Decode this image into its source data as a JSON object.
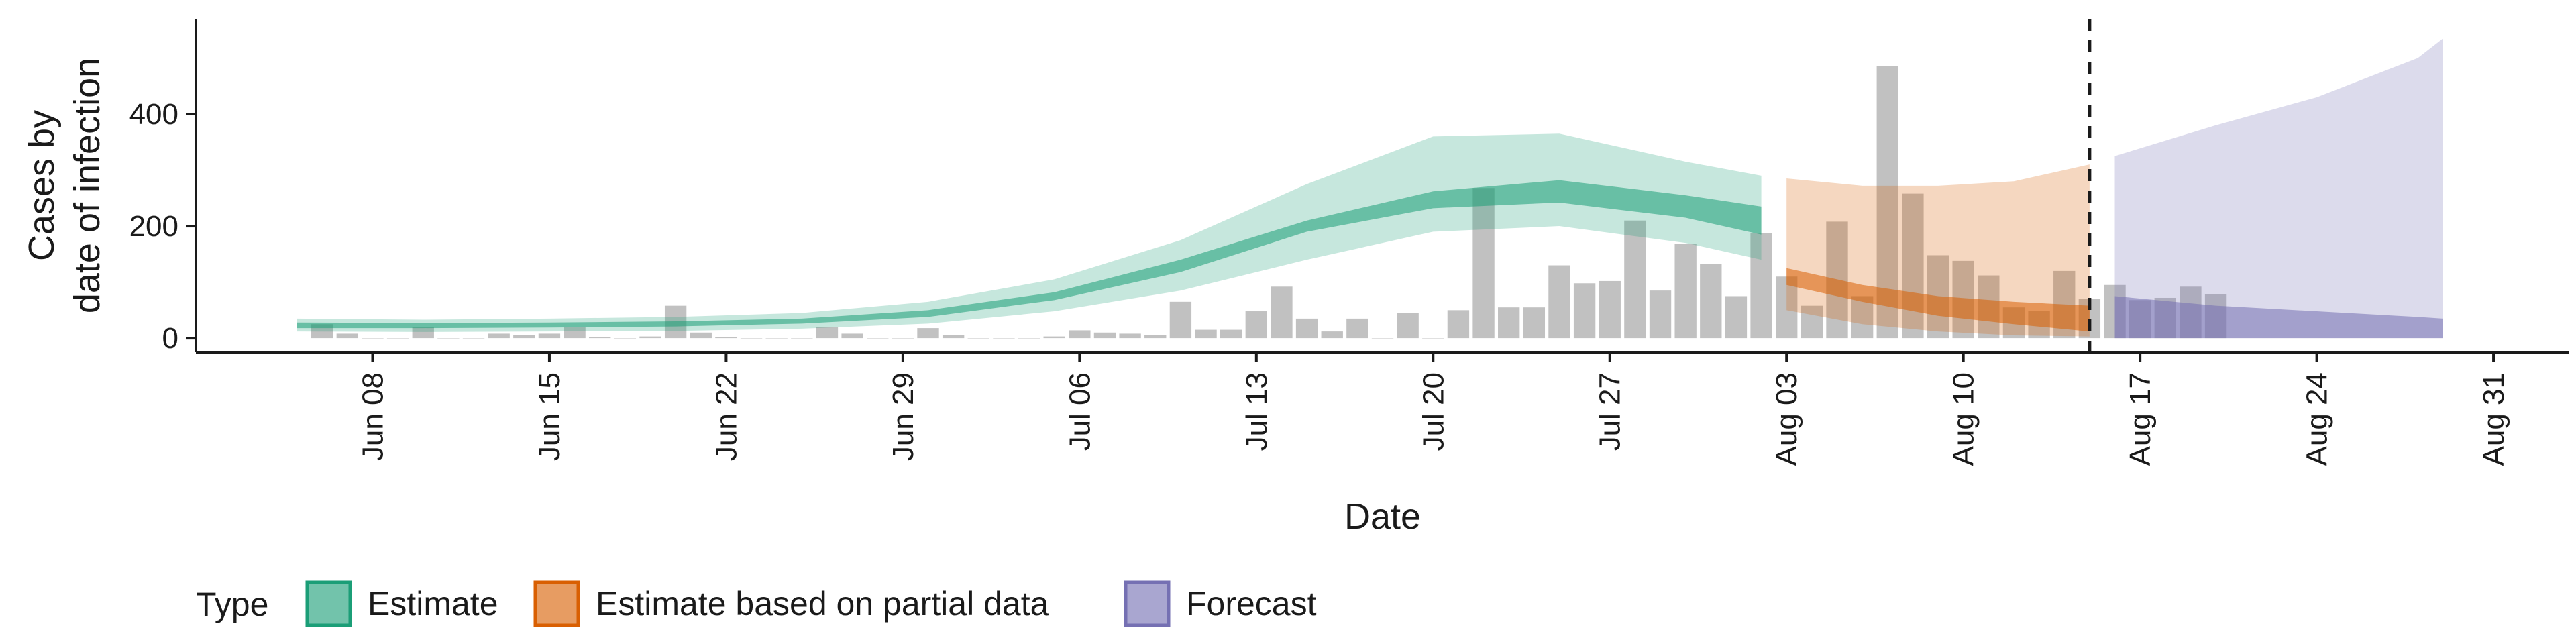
{
  "chart_data": {
    "type": "bar",
    "title": "",
    "xlabel": "Date",
    "ylabel_lines": [
      "Cases by",
      "date of infection"
    ],
    "x_range": [
      "2020-06-01",
      "2020-09-03"
    ],
    "ylim": [
      -25,
      570
    ],
    "y_ticks": [
      0,
      200,
      400
    ],
    "x_ticks": [
      {
        "date": "2020-06-08",
        "label": "Jun 08"
      },
      {
        "date": "2020-06-15",
        "label": "Jun 15"
      },
      {
        "date": "2020-06-22",
        "label": "Jun 22"
      },
      {
        "date": "2020-06-29",
        "label": "Jun 29"
      },
      {
        "date": "2020-07-06",
        "label": "Jul 06"
      },
      {
        "date": "2020-07-13",
        "label": "Jul 13"
      },
      {
        "date": "2020-07-20",
        "label": "Jul 20"
      },
      {
        "date": "2020-07-27",
        "label": "Jul 27"
      },
      {
        "date": "2020-08-03",
        "label": "Aug 03"
      },
      {
        "date": "2020-08-10",
        "label": "Aug 10"
      },
      {
        "date": "2020-08-17",
        "label": "Aug 17"
      },
      {
        "date": "2020-08-24",
        "label": "Aug 24"
      },
      {
        "date": "2020-08-31",
        "label": "Aug 31"
      }
    ],
    "grid": false,
    "forecast_cutoff_date": "2020-08-15",
    "bars": {
      "start_date": "2020-06-06",
      "color": "#b3b3b3",
      "values": [
        25,
        8,
        0,
        0,
        20,
        0,
        0,
        8,
        6,
        8,
        20,
        2,
        0,
        3,
        58,
        10,
        2,
        0,
        0,
        0,
        20,
        8,
        0,
        0,
        18,
        5,
        0,
        0,
        0,
        3,
        14,
        10,
        8,
        5,
        65,
        15,
        15,
        48,
        92,
        35,
        12,
        35,
        0,
        45,
        0,
        50,
        268,
        55,
        55,
        130,
        98,
        102,
        210,
        85,
        168,
        133,
        75,
        188,
        110,
        58,
        208,
        75,
        485,
        258,
        148,
        138,
        112,
        55,
        48,
        120,
        70,
        95,
        68,
        72,
        92,
        78
      ]
    },
    "series": [
      {
        "name": "Estimate",
        "color": "#1b9e77",
        "dates": [
          "2020-06-05",
          "2020-06-10",
          "2020-06-15",
          "2020-06-20",
          "2020-06-25",
          "2020-06-30",
          "2020-07-05",
          "2020-07-10",
          "2020-07-15",
          "2020-07-20",
          "2020-07-25",
          "2020-07-30",
          "2020-08-02"
        ],
        "lower90": [
          12,
          11,
          12,
          13,
          17,
          26,
          48,
          85,
          140,
          190,
          200,
          170,
          140
        ],
        "upper90": [
          35,
          33,
          35,
          38,
          45,
          65,
          105,
          175,
          275,
          360,
          365,
          315,
          290
        ],
        "lower50": [
          18,
          18,
          19,
          21,
          26,
          38,
          68,
          118,
          190,
          232,
          242,
          215,
          185
        ],
        "upper50": [
          28,
          27,
          28,
          30,
          35,
          50,
          82,
          140,
          210,
          262,
          282,
          255,
          235
        ]
      },
      {
        "name": "Estimate based on partial data",
        "color": "#d95f02",
        "dates": [
          "2020-08-03",
          "2020-08-06",
          "2020-08-09",
          "2020-08-12",
          "2020-08-15"
        ],
        "lower90": [
          50,
          25,
          12,
          5,
          3
        ],
        "upper90": [
          285,
          272,
          272,
          280,
          310
        ],
        "lower50": [
          95,
          65,
          40,
          25,
          12
        ],
        "upper50": [
          125,
          95,
          75,
          65,
          58
        ]
      },
      {
        "name": "Forecast",
        "color": "#7570b3",
        "dates": [
          "2020-08-16",
          "2020-08-20",
          "2020-08-24",
          "2020-08-28",
          "2020-08-29"
        ],
        "lower90": [
          0,
          0,
          0,
          0,
          0
        ],
        "upper90": [
          325,
          380,
          430,
          500,
          535
        ],
        "lower50": [
          0,
          0,
          0,
          0,
          0
        ],
        "upper50": [
          75,
          58,
          48,
          38,
          35
        ]
      }
    ],
    "legend": {
      "title": "Type",
      "position": "bottom-left",
      "items": [
        "Estimate",
        "Estimate based on partial data",
        "Forecast"
      ]
    }
  }
}
